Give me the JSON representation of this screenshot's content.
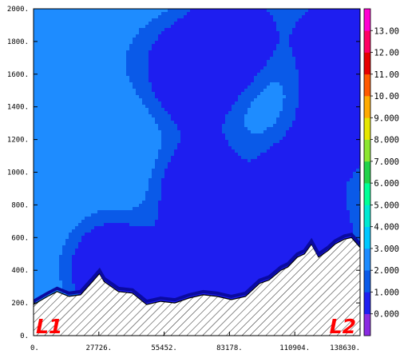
{
  "chart_data": {
    "type": "heatmap",
    "title": "",
    "xlabel": "",
    "ylabel": "",
    "xlim": [
      0,
      138630
    ],
    "ylim": [
      0,
      2000
    ],
    "x_ticks": [
      "0.",
      "27726.",
      "55452.",
      "83178.",
      "110904.",
      "138630."
    ],
    "x_tick_values": [
      0,
      27726,
      55452,
      83178,
      110904,
      138630
    ],
    "y_ticks": [
      "0.",
      "200.",
      "400.",
      "600.",
      "800.",
      "1000.",
      "1200.",
      "1400.",
      "1600.",
      "1800.",
      "2000."
    ],
    "y_tick_values": [
      0,
      200,
      400,
      600,
      800,
      1000,
      1200,
      1400,
      1600,
      1800,
      2000
    ],
    "colorbar": {
      "labels": [
        "0.000",
        "1.000",
        "2.000",
        "3.000",
        "4.000",
        "5.000",
        "6.000",
        "7.000",
        "8.000",
        "9.000",
        "10.00",
        "11.00",
        "12.00",
        "13.00"
      ],
      "colors": [
        "#8a2be2",
        "#1e1ef0",
        "#0a5ae8",
        "#1e8cff",
        "#00c8ff",
        "#00e8d2",
        "#00ff96",
        "#22d24a",
        "#8ce632",
        "#e6e600",
        "#ffaa00",
        "#ff5a00",
        "#e60000",
        "#ff0064",
        "#ff00d2"
      ]
    },
    "field_levels": [
      {
        "level": 0.5,
        "color": "#1e1ef0"
      },
      {
        "level": 1.5,
        "color": "#0a5ae8"
      },
      {
        "level": 2.5,
        "color": "#1e8cff"
      },
      {
        "level": 3.5,
        "color": "#00c8ff"
      },
      {
        "level": 4.5,
        "color": "#00e8d2"
      },
      {
        "level": 5.5,
        "color": "#00ff96"
      },
      {
        "level": 6.5,
        "color": "#22d24a"
      },
      {
        "level": 7.5,
        "color": "#8ce632"
      }
    ],
    "background_value": 3.5,
    "blobs": [
      {
        "x": 55000,
        "y": 1700,
        "v": 3.2
      },
      {
        "x": 5000,
        "y": 1400,
        "v": 3.3
      },
      {
        "x": 5000,
        "y": 800,
        "v": 3.5
      },
      {
        "x": 22000,
        "y": 1250,
        "v": 3.2
      },
      {
        "x": 28000,
        "y": 1550,
        "v": 3.0
      },
      {
        "x": 45000,
        "y": 1800,
        "v": 3.0
      },
      {
        "x": 75000,
        "y": 1100,
        "v": 2.2
      },
      {
        "x": 130000,
        "y": 1300,
        "v": -2.0
      },
      {
        "x": 128000,
        "y": 1800,
        "v": -1.5
      },
      {
        "x": 110000,
        "y": 900,
        "v": -1.5
      },
      {
        "x": 85000,
        "y": 1850,
        "v": -1.5
      },
      {
        "x": 68000,
        "y": 1600,
        "v": -1.8
      },
      {
        "x": 120000,
        "y": 550,
        "v": -1.3
      },
      {
        "x": 80000,
        "y": 400,
        "v": -1.5
      },
      {
        "x": 40000,
        "y": 330,
        "v": -0.8
      },
      {
        "x": 60000,
        "y": 180,
        "v": -2.8
      },
      {
        "x": 90000,
        "y": 280,
        "v": -1.2
      },
      {
        "x": 70000,
        "y": 850,
        "v": -1.0
      },
      {
        "x": 30000,
        "y": 430,
        "v": 0.5
      }
    ],
    "terrain": {
      "x": [
        0,
        6000,
        10000,
        15000,
        20000,
        25000,
        28000,
        30000,
        36000,
        42000,
        48000,
        54000,
        60000,
        66000,
        72000,
        78000,
        84000,
        90000,
        96000,
        100000,
        105000,
        108000,
        112000,
        115000,
        118000,
        121000,
        125000,
        128000,
        132000,
        135000,
        138630
      ],
      "y": [
        190,
        240,
        270,
        240,
        250,
        330,
        380,
        330,
        270,
        260,
        190,
        210,
        200,
        230,
        250,
        240,
        220,
        240,
        320,
        340,
        400,
        420,
        480,
        500,
        560,
        480,
        520,
        560,
        590,
        600,
        540
      ]
    },
    "markers": [
      {
        "label": "L1",
        "x": 0
      },
      {
        "label": "L2",
        "x": 138630
      }
    ]
  }
}
